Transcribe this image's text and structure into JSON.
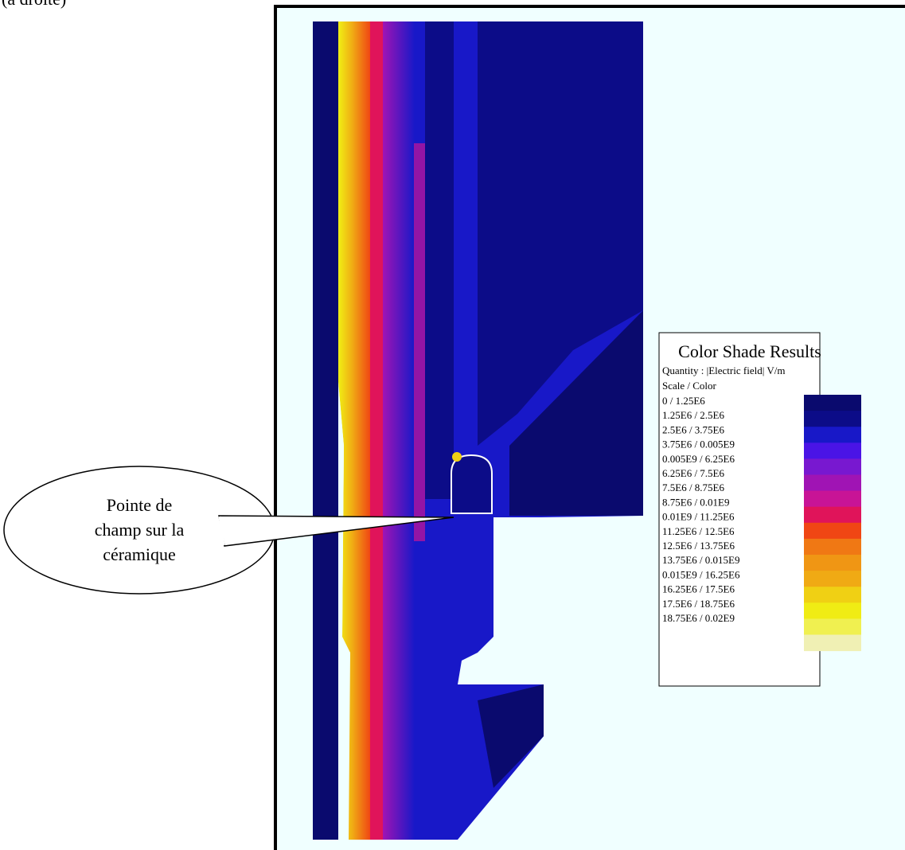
{
  "header": {
    "fragment": "(à droite)"
  },
  "callout": {
    "lines": [
      "Pointe de",
      "champ sur la",
      "céramique"
    ]
  },
  "legend": {
    "title": "Color Shade Results",
    "quantity": "Quantity : |Electric field| V/m",
    "scale_header": "Scale / Color",
    "rows": [
      {
        "label": "0  /  1.25E6",
        "color": "#0a0a6e"
      },
      {
        "label": "1.25E6  /  2.5E6",
        "color": "#0c0c88"
      },
      {
        "label": "2.5E6  /  3.75E6",
        "color": "#1818c8"
      },
      {
        "label": "3.75E6  /  0.005E9",
        "color": "#4a14e6"
      },
      {
        "label": "0.005E9  /  6.25E6",
        "color": "#7818d0"
      },
      {
        "label": "6.25E6  /  7.5E6",
        "color": "#a014b4"
      },
      {
        "label": "7.5E6  /  8.75E6",
        "color": "#c81496"
      },
      {
        "label": "8.75E6  /  0.01E9",
        "color": "#e0145a"
      },
      {
        "label": "0.01E9  /  11.25E6",
        "color": "#f04614"
      },
      {
        "label": "11.25E6  /  12.5E6",
        "color": "#f07814"
      },
      {
        "label": "12.5E6  /  13.75E6",
        "color": "#f09614"
      },
      {
        "label": "13.75E6  /  0.015E9",
        "color": "#f0aa14"
      },
      {
        "label": "0.015E9  /  16.25E6",
        "color": "#f0d014"
      },
      {
        "label": "16.25E6  /  17.5E6",
        "color": "#f0ec14"
      },
      {
        "label": "17.5E6  /  18.75E6",
        "color": "#f0f050"
      },
      {
        "label": "18.75E6  /  0.02E9",
        "color": "#f0f0b4"
      }
    ]
  }
}
